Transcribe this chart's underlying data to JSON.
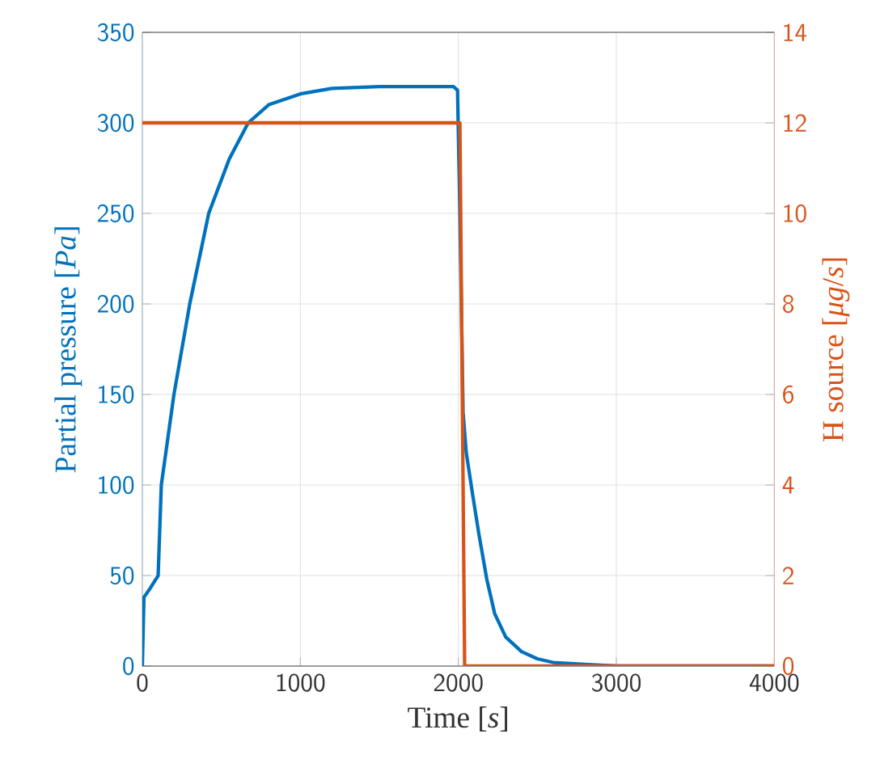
{
  "chart_data": {
    "type": "line",
    "xlabel": "Time [*s*]",
    "ylabel": "Partial pressure [*Pa*]",
    "y2label": "H source [*μg*/*s*]",
    "xlim": [
      0,
      4000
    ],
    "xticks": [
      0,
      1000,
      2000,
      3000,
      4000
    ],
    "ylim": [
      0,
      350
    ],
    "yticks": [
      0,
      50,
      100,
      150,
      200,
      250,
      300,
      350
    ],
    "y2lim": [
      0,
      14
    ],
    "y2ticks": [
      0,
      2,
      4,
      6,
      8,
      10,
      12,
      14
    ],
    "grid": true,
    "series": [
      {
        "color": "#0072bd",
        "axis": "y",
        "x": [
          0,
          10,
          50,
          100,
          120,
          200,
          300,
          420,
          550,
          670,
          800,
          1000,
          1200,
          1500,
          1970,
          1995,
          2010,
          2030,
          2050,
          2090,
          2130,
          2180,
          2230,
          2300,
          2400,
          2500,
          2600,
          2800,
          3000,
          4000
        ],
        "values": [
          0,
          38,
          43,
          50,
          100,
          150,
          200,
          250,
          280,
          300,
          310,
          316,
          319,
          320,
          320,
          318,
          250,
          140,
          118,
          95,
          73,
          48,
          29,
          16,
          8,
          4,
          2,
          1,
          0,
          0
        ]
      },
      {
        "color": "#d95319",
        "axis": "y2",
        "x": [
          0,
          2010,
          2040,
          4000
        ],
        "values": [
          12,
          12,
          0,
          0
        ]
      }
    ]
  }
}
